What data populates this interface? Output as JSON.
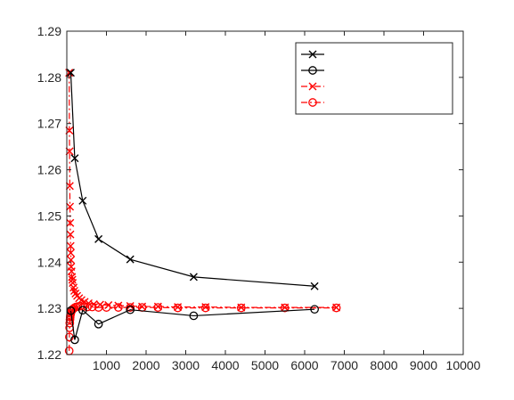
{
  "chart_data": {
    "type": "line",
    "title": "",
    "xlabel": "",
    "ylabel": "",
    "xlim": [
      0,
      10000
    ],
    "ylim": [
      1.22,
      1.29
    ],
    "xticks": [
      1000,
      2000,
      3000,
      4000,
      5000,
      6000,
      7000,
      8000,
      9000,
      10000
    ],
    "xtick_labels": [
      "1000",
      "2000",
      "3000",
      "4000",
      "5000",
      "6000",
      "7000",
      "8000",
      "9000",
      "10000"
    ],
    "yticks": [
      1.22,
      1.23,
      1.24,
      1.25,
      1.26,
      1.27,
      1.28,
      1.29
    ],
    "ytick_labels": [
      "1.22",
      "1.23",
      "1.24",
      "1.25",
      "1.26",
      "1.27",
      "1.28",
      "1.29"
    ],
    "grid": false,
    "legend_position": "top-right",
    "series": [
      {
        "color": "#000000",
        "line_style": "solid",
        "marker": "x",
        "x": [
          100,
          200,
          400,
          800,
          1600,
          3200,
          6250
        ],
        "y": [
          1.281,
          1.2625,
          1.2533,
          1.245,
          1.2406,
          1.2368,
          1.2348
        ]
      },
      {
        "color": "#000000",
        "line_style": "solid",
        "marker": "o",
        "x": [
          100,
          200,
          400,
          800,
          1600,
          3200,
          6250
        ],
        "y": [
          1.2295,
          1.2232,
          1.2296,
          1.2266,
          1.2297,
          1.2284,
          1.2298
        ]
      },
      {
        "color": "#ff0000",
        "line_style": "dashdot",
        "marker": "x",
        "x": [
          60,
          65,
          70,
          75,
          80,
          85,
          90,
          95,
          100,
          105,
          110,
          120,
          130,
          140,
          150,
          170,
          190,
          220,
          260,
          310,
          370,
          450,
          550,
          680,
          840,
          1050,
          1300,
          1600,
          1900,
          2300,
          2800,
          3500,
          4400,
          5500,
          6800
        ],
        "y": [
          1.281,
          1.2685,
          1.264,
          1.2565,
          1.252,
          1.2485,
          1.246,
          1.2435,
          1.242,
          1.2405,
          1.239,
          1.238,
          1.2368,
          1.2362,
          1.2355,
          1.2345,
          1.2338,
          1.2332,
          1.2327,
          1.2322,
          1.2318,
          1.2314,
          1.2311,
          1.2309,
          1.2308,
          1.2307,
          1.2306,
          1.2305,
          1.2304,
          1.2304,
          1.2303,
          1.2303,
          1.2302,
          1.2302,
          1.2302
        ]
      },
      {
        "color": "#ff0000",
        "line_style": "dashdot",
        "marker": "o",
        "x": [
          60,
          65,
          70,
          75,
          80,
          85,
          90,
          100,
          110,
          120,
          140,
          160,
          190,
          230,
          280,
          340,
          420,
          520,
          640,
          800,
          1000,
          1300,
          1600,
          1900,
          2300,
          2800,
          3500,
          4400,
          5500,
          6800
        ],
        "y": [
          1.2208,
          1.2238,
          1.2258,
          1.2268,
          1.2276,
          1.2281,
          1.2285,
          1.2289,
          1.2293,
          1.2295,
          1.2297,
          1.2299,
          1.2301,
          1.2303,
          1.2304,
          1.2305,
          1.2304,
          1.2303,
          1.2303,
          1.2302,
          1.2302,
          1.2302,
          1.2302,
          1.2302,
          1.2302,
          1.2301,
          1.2301,
          1.2301,
          1.2301,
          1.2301
        ]
      }
    ]
  }
}
